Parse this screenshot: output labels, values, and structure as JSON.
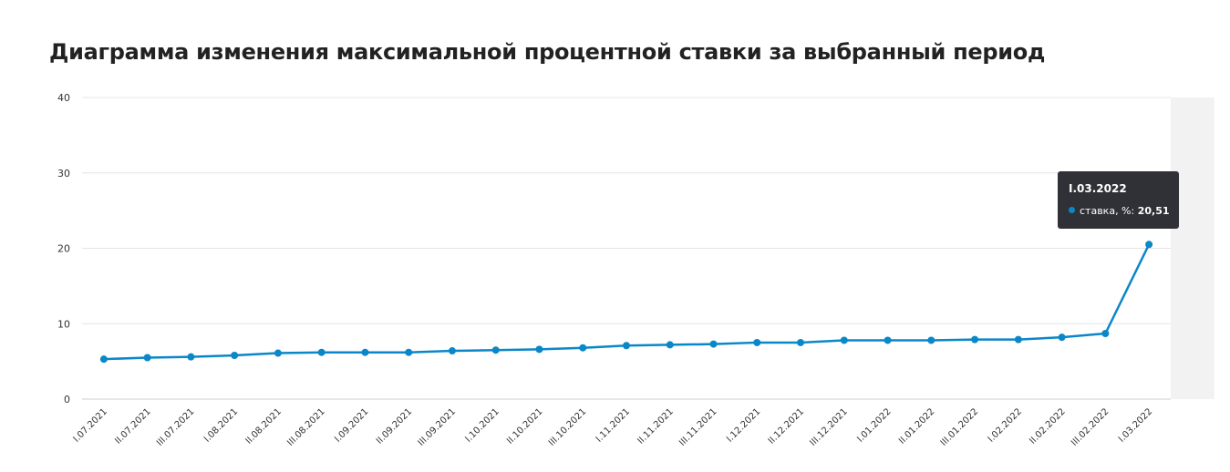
{
  "title": "Диаграмма изменения максимальной процентной ставки за выбранный период",
  "colors": {
    "line": "#0a87c8",
    "grid": "#e4e4e4",
    "highlight": "#f2f2f3",
    "tooltip_bg": "#2f3136"
  },
  "tooltip": {
    "title": "I.03.2022",
    "series_label": "ставка, %:",
    "value": "20,51"
  },
  "chart_data": {
    "type": "line",
    "title": "Диаграмма изменения максимальной процентной ставки за выбранный период",
    "xlabel": "",
    "ylabel": "",
    "ylim": [
      0,
      40
    ],
    "yticks": [
      0,
      10,
      20,
      30,
      40
    ],
    "grid": true,
    "highlight_index": 25,
    "categories": [
      "I.07.2021",
      "II.07.2021",
      "III.07.2021",
      "I.08.2021",
      "II.08.2021",
      "III.08.2021",
      "I.09.2021",
      "II.09.2021",
      "III.09.2021",
      "I.10.2021",
      "II.10.2021",
      "III.10.2021",
      "I.11.2021",
      "II.11.2021",
      "III.11.2021",
      "I.12.2021",
      "II.12.2021",
      "III.12.2021",
      "I.01.2022",
      "II.01.2022",
      "III.01.2022",
      "I.02.2022",
      "II.02.2022",
      "III.02.2022",
      "I.03.2022"
    ],
    "series": [
      {
        "name": "ставка, %",
        "values": [
          5.3,
          5.5,
          5.6,
          5.8,
          6.1,
          6.2,
          6.2,
          6.2,
          6.4,
          6.5,
          6.6,
          6.8,
          7.1,
          7.2,
          7.3,
          7.5,
          7.5,
          7.8,
          7.8,
          7.8,
          7.9,
          7.9,
          8.2,
          8.7,
          20.51
        ]
      }
    ]
  }
}
